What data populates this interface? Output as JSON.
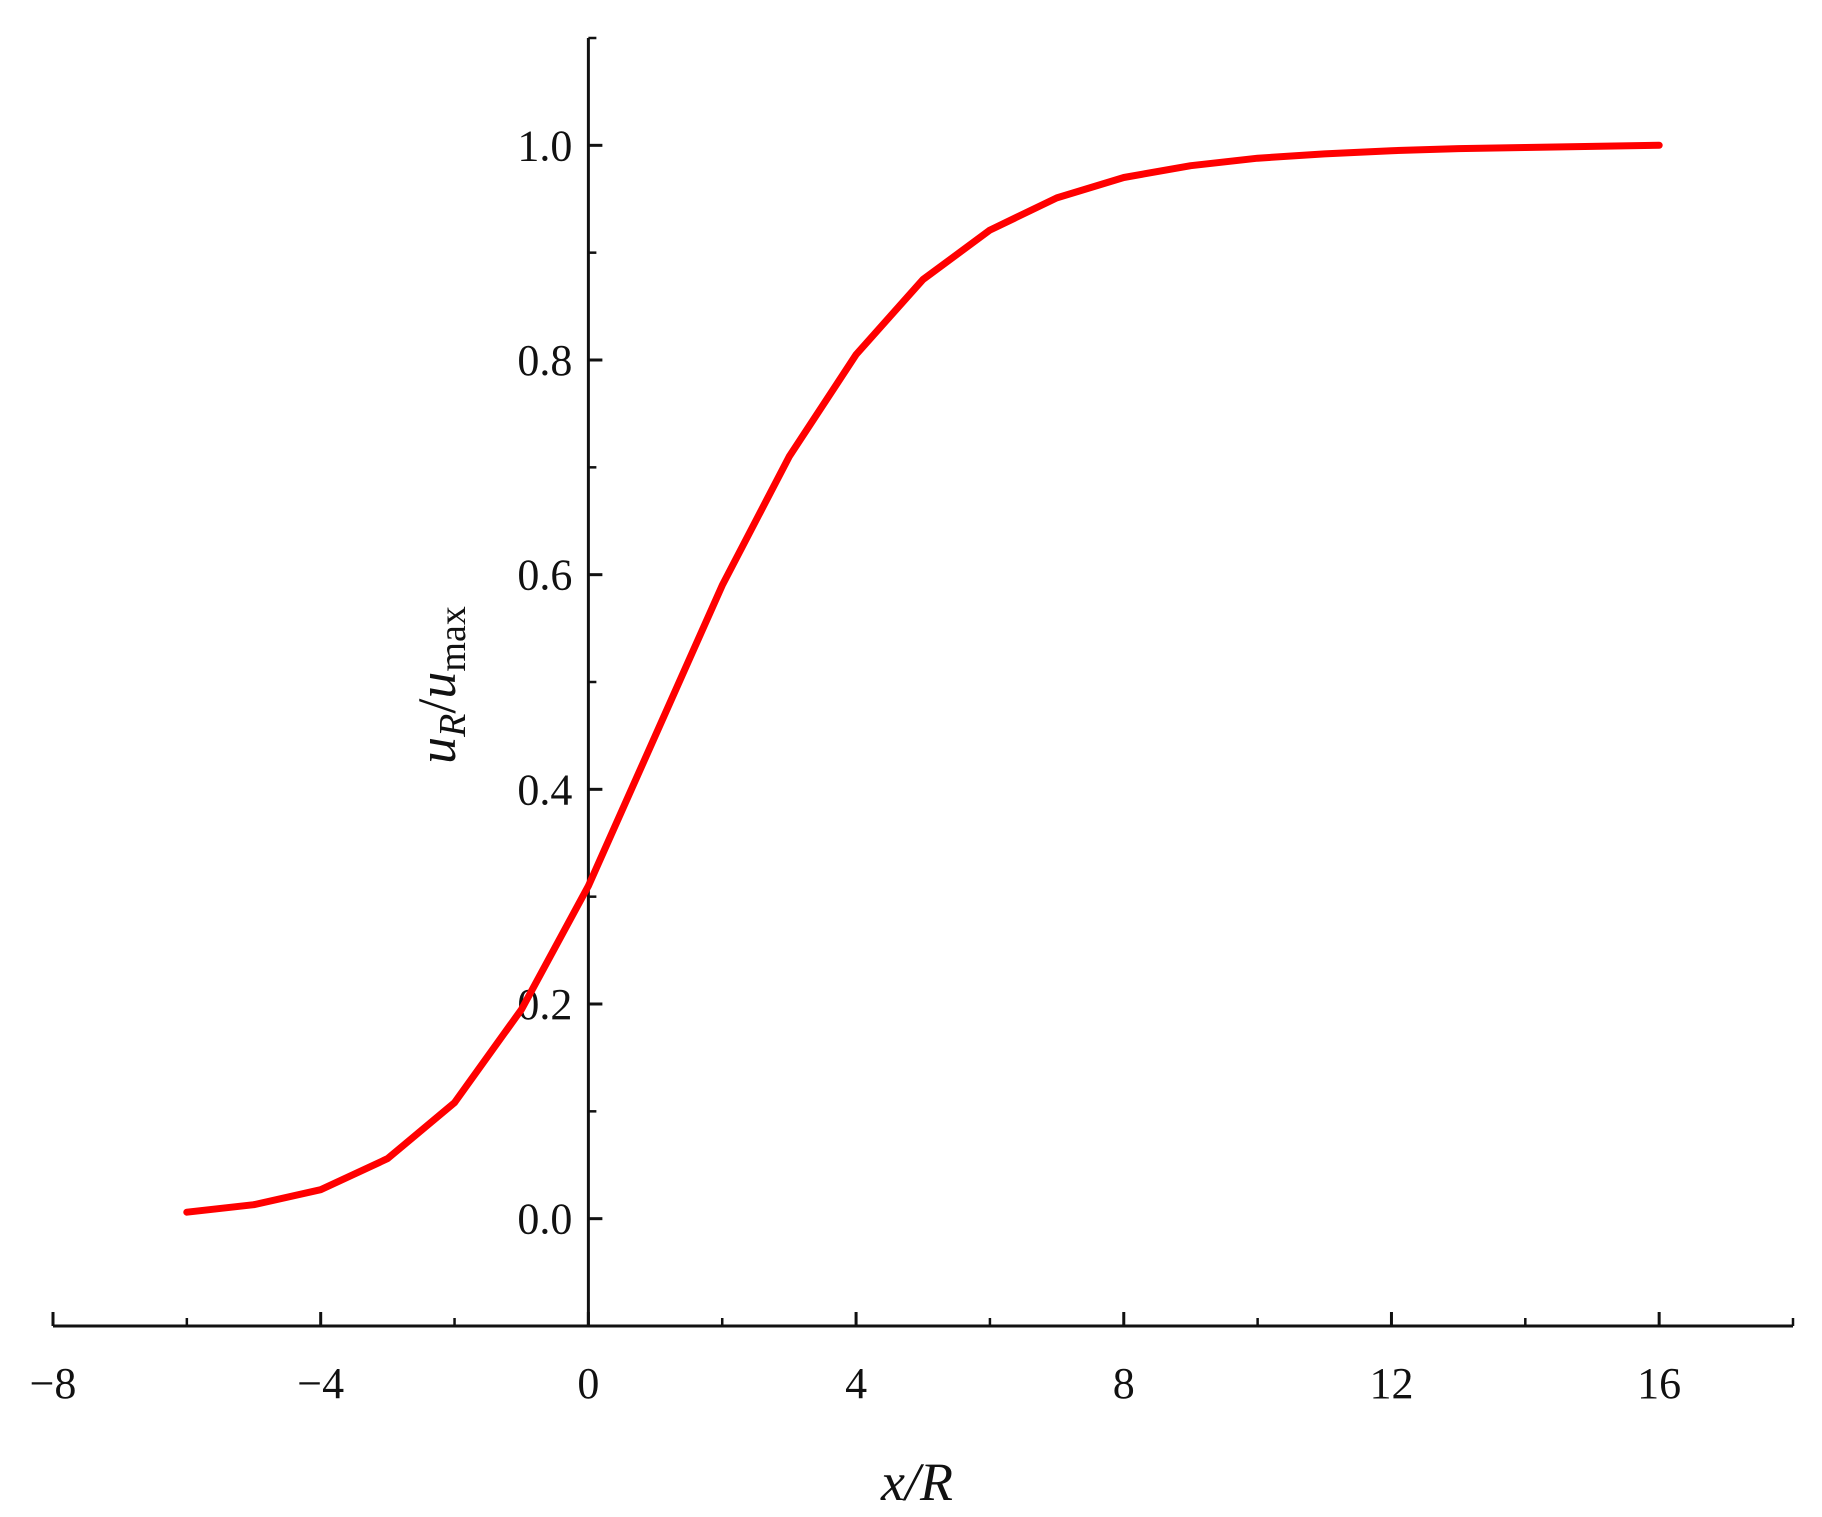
{
  "chart_data": {
    "type": "line",
    "title": "",
    "xlabel": "x/R",
    "ylabel": "u_R/u_max",
    "xlim": [
      -8,
      18
    ],
    "ylim": [
      -0.1,
      1.1
    ],
    "x_ticks": [
      -8,
      -4,
      0,
      4,
      8,
      12,
      16
    ],
    "x_tick_labels": [
      "−8",
      "−4",
      "0",
      "4",
      "8",
      "12",
      "16"
    ],
    "y_ticks": [
      0.0,
      0.2,
      0.4,
      0.6,
      0.8,
      1.0
    ],
    "y_tick_labels": [
      "0.0",
      "0.2",
      "0.4",
      "0.6",
      "0.8",
      "1.0"
    ],
    "grid": false,
    "series": [
      {
        "color": "#ff0000",
        "x": [
          -6,
          -5,
          -4,
          -3,
          -2,
          -1,
          0,
          1,
          2,
          3,
          4,
          5,
          6,
          7,
          8,
          9,
          10,
          11,
          12,
          13,
          14,
          15,
          16
        ],
        "y": [
          0.006,
          0.013,
          0.027,
          0.056,
          0.108,
          0.195,
          0.31,
          0.45,
          0.59,
          0.71,
          0.805,
          0.875,
          0.921,
          0.951,
          0.97,
          0.981,
          0.988,
          0.992,
          0.995,
          0.997,
          0.998,
          0.999,
          1.0
        ]
      }
    ]
  }
}
